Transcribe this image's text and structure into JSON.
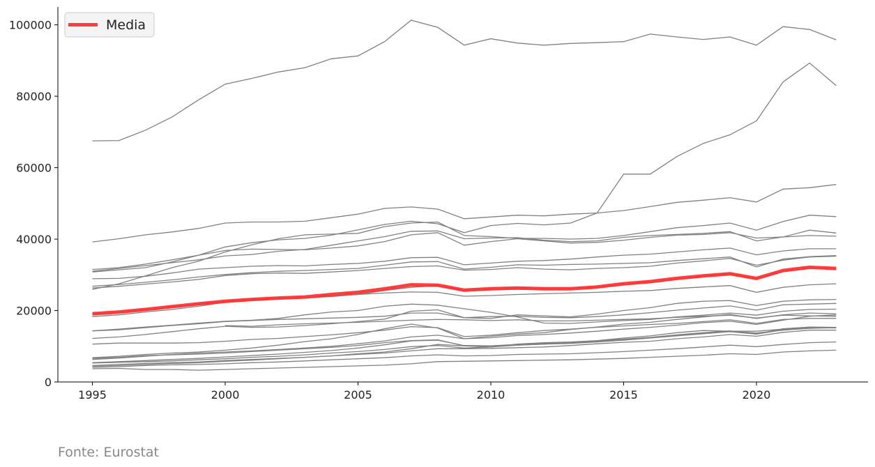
{
  "source_note": "Fonte: Eurostat",
  "colors": {
    "country_line": "#808080",
    "mean_line": "#ff3333",
    "axis": "#000000"
  },
  "chart_data": {
    "type": "line",
    "xlim": [
      1993.7,
      2024.2
    ],
    "ylim": [
      0,
      105000
    ],
    "x_ticks": [
      1995,
      2000,
      2005,
      2010,
      2015,
      2020
    ],
    "y_ticks": [
      0,
      20000,
      40000,
      60000,
      80000,
      100000
    ],
    "legend": {
      "placement": "top-left",
      "entries": [
        "Media"
      ]
    },
    "grid": false,
    "x": [
      1995,
      1996,
      1997,
      1998,
      1999,
      2000,
      2001,
      2002,
      2003,
      2004,
      2005,
      2006,
      2007,
      2008,
      2009,
      2010,
      2011,
      2012,
      2013,
      2014,
      2015,
      2016,
      2017,
      2018,
      2019,
      2020,
      2021,
      2022,
      2023
    ],
    "series": [
      {
        "values": [
          67500,
          67600,
          70500,
          74200,
          79000,
          83400,
          85000,
          86800,
          88000,
          90500,
          91300,
          95300,
          101300,
          99300,
          94300,
          96100,
          94900,
          94300,
          94800,
          95000,
          95300,
          97400,
          96600,
          95900,
          96600,
          94300,
          99500,
          98700,
          95800
        ]
      },
      {
        "values": [
          30800,
          31400,
          32000,
          33600,
          35500,
          37800,
          39000,
          39800,
          40200,
          41100,
          42600,
          44100,
          45000,
          44300,
          41800,
          43800,
          44400,
          44000,
          44500,
          47300,
          58200,
          58200,
          63100,
          66800,
          69200,
          73100,
          84000,
          89300,
          83000
        ]
      },
      {
        "values": [
          39200,
          40100,
          41200,
          42000,
          43000,
          44500,
          44800,
          44800,
          45000,
          46000,
          47000,
          48600,
          49000,
          48400,
          45700,
          46200,
          46700,
          46500,
          47000,
          47300,
          48000,
          49100,
          50300,
          50900,
          51600,
          50400,
          54000,
          54400,
          55300
        ]
      },
      {
        "values": [
          31500,
          32000,
          33000,
          34200,
          35500,
          36800,
          37200,
          37100,
          37000,
          37500,
          38100,
          39300,
          41200,
          41800,
          38300,
          39300,
          40100,
          39500,
          38900,
          39100,
          39700,
          40500,
          41100,
          41300,
          41800,
          40300,
          40600,
          41000,
          40800
        ]
      },
      {
        "values": [
          28900,
          29000,
          29600,
          30500,
          31600,
          32000,
          32400,
          32600,
          32500,
          32900,
          33200,
          33800,
          34800,
          34900,
          32800,
          33300,
          33800,
          34000,
          34400,
          35000,
          35500,
          35800,
          36400,
          37000,
          37500,
          35600,
          36700,
          37300,
          37300
        ]
      },
      {
        "values": [
          25900,
          27500,
          29700,
          32000,
          33800,
          36400,
          38400,
          40100,
          41200,
          41400,
          41600,
          43500,
          44500,
          44800,
          41000,
          40700,
          40200,
          40200,
          40000,
          40200,
          41000,
          42100,
          43200,
          43800,
          44500,
          42500,
          44900,
          46700,
          46300
        ]
      },
      {
        "values": [
          31000,
          31800,
          32600,
          33400,
          34200,
          35300,
          35700,
          36600,
          37100,
          38300,
          39500,
          40700,
          42200,
          42300,
          40100,
          40300,
          40400,
          39700,
          39300,
          39500,
          40500,
          41000,
          41300,
          41600,
          42100,
          39500,
          40600,
          42500,
          41700
        ]
      },
      {
        "values": [
          26800,
          27300,
          27900,
          28600,
          29400,
          30100,
          30600,
          31000,
          31200,
          31500,
          31800,
          32700,
          33600,
          33700,
          31600,
          32100,
          32800,
          32700,
          32900,
          33000,
          33200,
          33400,
          34000,
          34500,
          35000,
          32200,
          34400,
          35100,
          35400
        ]
      },
      {
        "values": [
          26300,
          26800,
          27400,
          28000,
          28700,
          29800,
          30300,
          30500,
          30400,
          30800,
          31200,
          31800,
          32300,
          32500,
          31300,
          31500,
          32000,
          31600,
          31400,
          31800,
          32000,
          32400,
          33300,
          33900,
          34600,
          32700,
          34100,
          35000,
          35200
        ]
      },
      {
        "values": [
          19000,
          19300,
          20000,
          21000,
          21700,
          22600,
          23100,
          23500,
          23600,
          24100,
          24500,
          24900,
          25200,
          25100,
          24000,
          24200,
          24500,
          24700,
          24900,
          25100,
          25400,
          25600,
          26200,
          26600,
          27000,
          25100,
          26500,
          27200,
          27500
        ]
      },
      {
        "values": [
          18300,
          18800,
          19600,
          20300,
          21200,
          22300,
          22900,
          23200,
          23500,
          23900,
          24500,
          25600,
          26500,
          27000,
          25600,
          25800,
          26000,
          26000,
          26100,
          26600,
          27200,
          27800,
          28800,
          29600,
          30200,
          28800,
          31000,
          31900,
          31800
        ]
      },
      {
        "values": [
          14300,
          14600,
          15200,
          15800,
          16300,
          16900,
          17200,
          17500,
          17700,
          17900,
          18100,
          18400,
          19300,
          19300,
          18000,
          18300,
          18400,
          18100,
          18000,
          18300,
          18800,
          19400,
          20100,
          20700,
          21300,
          20100,
          21600,
          21800,
          22000
        ]
      },
      {
        "values": [
          14300,
          14800,
          15400,
          15900,
          16500,
          17000,
          17300,
          17800,
          18800,
          19600,
          20000,
          21200,
          21800,
          21500,
          20500,
          19500,
          18200,
          16500,
          16400,
          16800,
          17200,
          17500,
          18200,
          18700,
          19300,
          18700,
          19800,
          20300,
          20400
        ]
      },
      {
        "values": [
          12200,
          12600,
          13300,
          14100,
          14900,
          15600,
          15300,
          15400,
          15800,
          16300,
          16900,
          17600,
          19800,
          20200,
          18000,
          17800,
          18800,
          18500,
          18200,
          19000,
          20000,
          20800,
          22000,
          22600,
          22800,
          21400,
          22600,
          23000,
          23100
        ]
      },
      {
        "values": [
          10600,
          10900,
          10900,
          10900,
          11000,
          11400,
          11900,
          12200,
          12700,
          13200,
          13800,
          14500,
          15500,
          15200,
          12700,
          13100,
          13800,
          14400,
          14800,
          15300,
          15700,
          16100,
          16400,
          16900,
          17400,
          16400,
          17500,
          17800,
          17800
        ]
      },
      {
        "values": [
          6800,
          7200,
          7700,
          8100,
          8400,
          8900,
          9500,
          10300,
          11300,
          12100,
          13300,
          14900,
          16200,
          15100,
          12100,
          12800,
          13400,
          13800,
          14700,
          15400,
          16200,
          16700,
          17500,
          18200,
          18900,
          17800,
          18800,
          19300,
          19100
        ]
      },
      {
        "values": [
          6600,
          6900,
          7400,
          7600,
          7800,
          8100,
          8500,
          8900,
          9300,
          9700,
          10200,
          11000,
          11600,
          11800,
          10100,
          10100,
          10300,
          10600,
          10800,
          11200,
          11700,
          12300,
          12900,
          13500,
          14100,
          13400,
          14600,
          15300,
          15300
        ]
      },
      {
        "values": [
          6300,
          6700,
          7200,
          7700,
          8100,
          8400,
          8700,
          9100,
          9500,
          10000,
          10700,
          11500,
          12600,
          13100,
          12100,
          12400,
          13000,
          13300,
          13700,
          14200,
          14800,
          15300,
          15900,
          16600,
          17000,
          16100,
          17300,
          18400,
          18800
        ]
      },
      {
        "values": [
          5400,
          5700,
          6000,
          6300,
          6600,
          7000,
          7400,
          7800,
          8300,
          8800,
          9500,
          10400,
          11500,
          11700,
          10200,
          10100,
          10500,
          10800,
          11100,
          11500,
          12000,
          12500,
          13200,
          13800,
          14300,
          13400,
          14900,
          15400,
          15300
        ]
      },
      {
        "values": [
          5300,
          5500,
          5700,
          5900,
          6200,
          6500,
          6900,
          7200,
          7600,
          8100,
          8500,
          9100,
          9900,
          10200,
          9500,
          9800,
          10300,
          10600,
          11000,
          11400,
          11900,
          12400,
          13000,
          13600,
          14200,
          13700,
          14500,
          15000,
          15200
        ]
      },
      {
        "values": [
          4600,
          4900,
          5200,
          5400,
          5600,
          6000,
          6300,
          6600,
          6900,
          7300,
          7900,
          8400,
          9300,
          10500,
          10100,
          9800,
          10600,
          11000,
          11200,
          11600,
          12300,
          12900,
          13800,
          14400,
          14200,
          14200,
          14800,
          15200,
          15100
        ]
      },
      {
        "values": [
          4400,
          4600,
          4900,
          5200,
          5400,
          5800,
          6100,
          6500,
          6900,
          7300,
          7700,
          8100,
          8700,
          9300,
          9300,
          9400,
          9600,
          9800,
          10200,
          10700,
          11100,
          11400,
          12100,
          12600,
          13300,
          12800,
          13900,
          14500,
          14500
        ]
      },
      {
        "values": [
          4100,
          4300,
          4600,
          4800,
          4900,
          5100,
          5400,
          5600,
          5900,
          6200,
          6500,
          6800,
          7300,
          7600,
          7300,
          7400,
          7700,
          7800,
          7900,
          8200,
          8500,
          8900,
          9300,
          9800,
          10300,
          9900,
          10500,
          11000,
          11200
        ]
      },
      {
        "values": [
          3700,
          3800,
          3500,
          3500,
          3300,
          3500,
          3700,
          3900,
          4100,
          4300,
          4500,
          4700,
          5100,
          5700,
          5800,
          5900,
          6000,
          6100,
          6200,
          6400,
          6600,
          6900,
          7200,
          7500,
          7900,
          7700,
          8400,
          8700,
          8900
        ]
      },
      {
        "values": [
          null,
          null,
          null,
          null,
          null,
          15800,
          15600,
          16000,
          16300,
          16500,
          16700,
          17000,
          17300,
          17500,
          17400,
          17200,
          17400,
          17100,
          17100,
          17300,
          17500,
          17700,
          18100,
          18400,
          18700,
          17900,
          18700,
          18500,
          18400
        ]
      }
    ],
    "mean": {
      "name": "Media",
      "values": [
        19100,
        19600,
        20300,
        21100,
        21900,
        22600,
        23100,
        23500,
        23800,
        24500,
        25100,
        26100,
        27200,
        27100,
        25700,
        26100,
        26300,
        26100,
        26100,
        26600,
        27500,
        28100,
        29000,
        29700,
        30300,
        29000,
        31200,
        32100,
        31800
      ]
    }
  }
}
